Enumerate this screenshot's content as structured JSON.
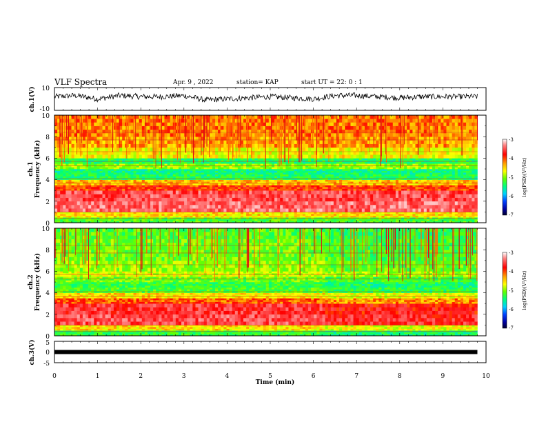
{
  "header": {
    "title": "VLF Spectra",
    "date": "Apr. 9 , 2022",
    "station": "station= KAP",
    "start": "start UT = 22: 0 : 1"
  },
  "panels": {
    "ch1v": {
      "label": "ch.1(V)",
      "yticks": [
        "10",
        "-10"
      ]
    },
    "spec1": {
      "label": "ch.1",
      "label2": "Frequency (kHz)",
      "yticks": [
        "10",
        "8",
        "6",
        "4",
        "2",
        "0"
      ]
    },
    "spec2": {
      "label": "ch.2",
      "label2": "Frequency (kHz)",
      "yticks": [
        "10",
        "8",
        "6",
        "4",
        "2",
        "0"
      ]
    },
    "ch3v": {
      "label": "ch.3(V)",
      "yticks": [
        "5",
        "0",
        "-5"
      ]
    }
  },
  "xaxis": {
    "label": "Time (min)",
    "ticks": [
      "0",
      "1",
      "2",
      "3",
      "4",
      "5",
      "6",
      "7",
      "8",
      "9",
      "10"
    ]
  },
  "colorbar": {
    "label": "log(PSD)(V²/Hz)",
    "ticks": [
      "-3",
      "-4",
      "-5",
      "-6",
      "-7"
    ],
    "colors": [
      "#ffffff",
      "#ff6060",
      "#ff0000",
      "#ffa000",
      "#ffff00",
      "#80ff00",
      "#00ff60",
      "#00e0e0",
      "#0060ff",
      "#0000a0",
      "#000040"
    ]
  },
  "chart_data": [
    {
      "type": "line",
      "title": "VLF Spectra",
      "panel": "ch.1(V)",
      "xlabel": "Time (min)",
      "ylabel": "ch.1(V)",
      "xlim": [
        0,
        10
      ],
      "ylim": [
        -10,
        10
      ],
      "x": [
        0,
        0.5,
        1,
        1.5,
        2,
        2.5,
        3,
        3.5,
        4,
        4.5,
        5,
        5.5,
        6,
        6.5,
        7,
        7.5,
        8,
        8.5,
        9,
        9.5,
        9.8
      ],
      "y": [
        2,
        3,
        0,
        3,
        2,
        2,
        3,
        -1,
        0,
        1,
        2,
        1,
        0,
        3,
        3,
        2,
        1,
        2,
        2,
        2,
        2
      ]
    },
    {
      "type": "heatmap",
      "panel": "ch.1",
      "ylabel": "Frequency (kHz)",
      "xlim": [
        0,
        10
      ],
      "ylim": [
        0,
        10
      ],
      "colorbar_label": "log(PSD)(V²/Hz)",
      "colorbar_range": [
        -7,
        -3
      ],
      "freq_kHz": [
        0.25,
        0.75,
        1.5,
        2.5,
        3.25,
        3.75,
        4.25,
        4.75,
        5.25,
        5.75,
        6.5,
        7.5,
        8.5,
        9.5
      ],
      "log_psd": [
        -5.0,
        -4.4,
        -3.4,
        -3.5,
        -3.9,
        -4.3,
        -5.2,
        -5.3,
        -4.8,
        -5.2,
        -4.5,
        -4.2,
        -4.1,
        -4.1
      ]
    },
    {
      "type": "heatmap",
      "panel": "ch.2",
      "ylabel": "Frequency (kHz)",
      "xlim": [
        0,
        10
      ],
      "ylim": [
        0,
        10
      ],
      "colorbar_label": "log(PSD)(V²/Hz)",
      "colorbar_range": [
        -7,
        -3
      ],
      "freq_kHz": [
        0.25,
        0.75,
        1.5,
        2.5,
        3.25,
        3.75,
        4.25,
        4.75,
        5.25,
        5.75,
        6.5,
        7.5,
        8.5,
        9.5
      ],
      "log_psd": [
        -5.1,
        -4.4,
        -3.5,
        -3.6,
        -4.0,
        -4.4,
        -5.0,
        -5.1,
        -4.9,
        -4.6,
        -4.8,
        -4.9,
        -4.9,
        -5.0
      ]
    },
    {
      "type": "line",
      "panel": "ch.3(V)",
      "ylabel": "ch.3(V)",
      "xlim": [
        0,
        10
      ],
      "ylim": [
        -5,
        5
      ],
      "x": [
        0,
        9.8
      ],
      "y": [
        0,
        0
      ]
    }
  ]
}
